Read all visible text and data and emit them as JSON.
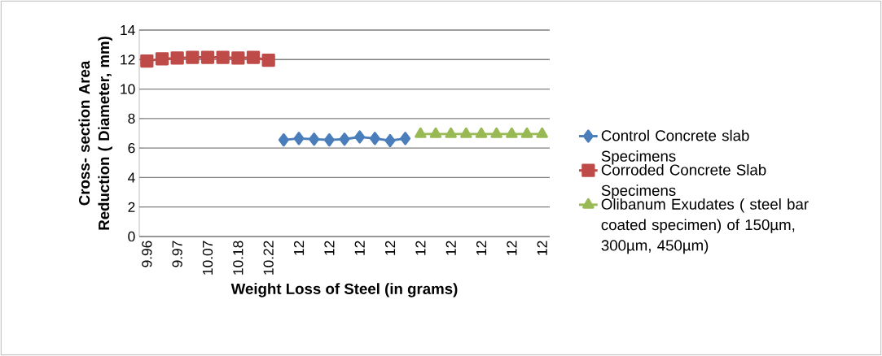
{
  "chart_data": {
    "type": "line",
    "xlabel": "Weight Loss  of Steel (in grams)",
    "ylabel": "Cross- section Area Reduction ( Diameter, mm)",
    "categories": [
      "9.96",
      null,
      "9.97",
      null,
      "10.07",
      null,
      "10.18",
      null,
      "10.22",
      null,
      "12",
      null,
      "12",
      null,
      "12",
      null,
      "12",
      null,
      "12",
      null,
      "12",
      null,
      "12",
      null,
      "12",
      null,
      "12"
    ],
    "series": [
      {
        "name": "Control  Concrete slab Specimens",
        "color": "#4a7ebb",
        "marker": "diamond",
        "values": [
          null,
          null,
          null,
          null,
          null,
          null,
          null,
          null,
          null,
          6.55,
          6.65,
          6.6,
          6.55,
          6.6,
          6.75,
          6.65,
          6.5,
          6.65,
          null,
          null,
          null,
          null,
          null,
          null,
          null,
          null,
          null
        ]
      },
      {
        "name": "Corroded  Concrete Slab Specimens",
        "color": "#be4b48",
        "marker": "square",
        "values": [
          11.9,
          12.05,
          12.1,
          12.15,
          12.15,
          12.15,
          12.1,
          12.15,
          11.95,
          null,
          null,
          null,
          null,
          null,
          null,
          null,
          null,
          null,
          null,
          null,
          null,
          null,
          null,
          null,
          null,
          null,
          null
        ]
      },
      {
        "name": "Olibanum  Exudates ( steel bar coated specimen)  of 150µm, 300µm, 450µm)",
        "color": "#98b954",
        "marker": "triangle",
        "values": [
          null,
          null,
          null,
          null,
          null,
          null,
          null,
          null,
          null,
          null,
          null,
          null,
          null,
          null,
          null,
          null,
          null,
          null,
          6.95,
          6.95,
          6.95,
          6.95,
          6.95,
          6.95,
          6.95,
          6.95,
          6.95
        ]
      }
    ],
    "ylim": [
      0,
      14
    ],
    "yticks": [
      0,
      2,
      4,
      6,
      8,
      10,
      12,
      14
    ],
    "grid": "y",
    "legend": "right",
    "line_style": "solid"
  }
}
